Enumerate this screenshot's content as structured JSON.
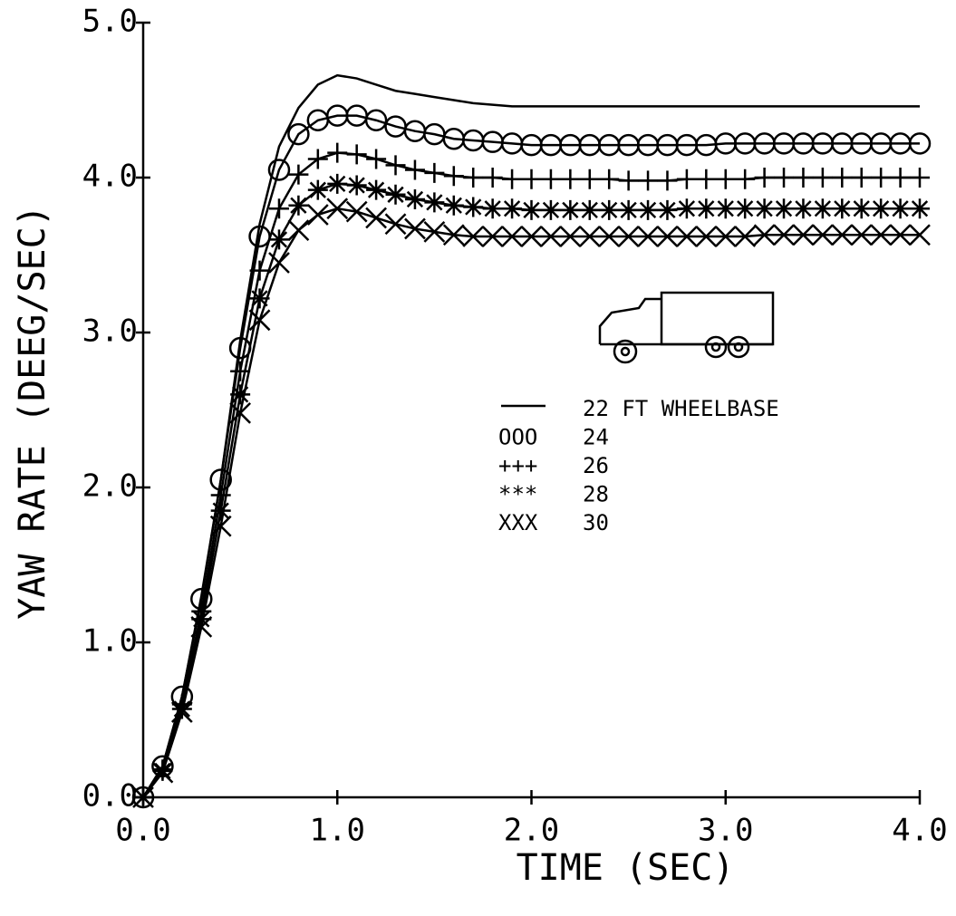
{
  "chart_data": {
    "type": "line",
    "xlabel": "TIME (SEC)",
    "ylabel": "YAW RATE (DEEG/SEC)",
    "x": [
      0,
      0.1,
      0.2,
      0.3,
      0.4,
      0.5,
      0.6,
      0.7,
      0.8,
      0.9,
      1.0,
      1.1,
      1.2,
      1.3,
      1.4,
      1.5,
      1.6,
      1.7,
      1.8,
      1.9,
      2.0,
      2.1,
      2.2,
      2.3,
      2.4,
      2.5,
      2.6,
      2.7,
      2.8,
      2.9,
      3.0,
      3.1,
      3.2,
      3.3,
      3.4,
      3.5,
      3.6,
      3.7,
      3.8,
      3.9,
      4.0
    ],
    "series": [
      {
        "name": "22 FT WHEELBASE",
        "color": "#000000",
        "marker": "none",
        "values": [
          0,
          0.2,
          0.65,
          1.3,
          2.05,
          2.95,
          3.7,
          4.2,
          4.45,
          4.6,
          4.66,
          4.64,
          4.6,
          4.56,
          4.54,
          4.52,
          4.5,
          4.48,
          4.47,
          4.46,
          4.46,
          4.46,
          4.46,
          4.46,
          4.46,
          4.46,
          4.46,
          4.46,
          4.46,
          4.46,
          4.46,
          4.46,
          4.46,
          4.46,
          4.46,
          4.46,
          4.46,
          4.46,
          4.46,
          4.46,
          4.46
        ]
      },
      {
        "name": "24",
        "legend_marker": "OOO",
        "color": "#000000",
        "marker": "o",
        "values": [
          0,
          0.2,
          0.65,
          1.28,
          2.05,
          2.9,
          3.62,
          4.05,
          4.28,
          4.37,
          4.4,
          4.4,
          4.37,
          4.33,
          4.3,
          4.28,
          4.25,
          4.24,
          4.23,
          4.22,
          4.21,
          4.21,
          4.21,
          4.21,
          4.21,
          4.21,
          4.21,
          4.21,
          4.21,
          4.21,
          4.22,
          4.22,
          4.22,
          4.22,
          4.22,
          4.22,
          4.22,
          4.22,
          4.22,
          4.22,
          4.22
        ]
      },
      {
        "name": "26",
        "legend_marker": "+++",
        "color": "#000000",
        "marker": "+",
        "values": [
          0,
          0.18,
          0.6,
          1.2,
          1.95,
          2.75,
          3.4,
          3.8,
          4.02,
          4.12,
          4.16,
          4.15,
          4.12,
          4.08,
          4.05,
          4.03,
          4.01,
          4.0,
          4.0,
          3.99,
          3.99,
          3.99,
          3.99,
          3.99,
          3.99,
          3.98,
          3.98,
          3.98,
          3.99,
          3.99,
          3.99,
          3.99,
          4.0,
          4.0,
          4.0,
          4.0,
          4.0,
          4.0,
          4.0,
          4.0,
          4.0
        ]
      },
      {
        "name": "28",
        "legend_marker": "***",
        "color": "#000000",
        "marker": "*",
        "values": [
          0,
          0.17,
          0.57,
          1.15,
          1.85,
          2.6,
          3.22,
          3.6,
          3.82,
          3.92,
          3.96,
          3.95,
          3.92,
          3.89,
          3.86,
          3.84,
          3.82,
          3.81,
          3.8,
          3.8,
          3.79,
          3.79,
          3.79,
          3.79,
          3.79,
          3.79,
          3.79,
          3.79,
          3.8,
          3.8,
          3.8,
          3.8,
          3.8,
          3.8,
          3.8,
          3.8,
          3.8,
          3.8,
          3.8,
          3.8,
          3.8
        ]
      },
      {
        "name": "30",
        "legend_marker": "XXX",
        "color": "#000000",
        "marker": "x",
        "values": [
          0,
          0.16,
          0.55,
          1.1,
          1.75,
          2.48,
          3.08,
          3.45,
          3.66,
          3.76,
          3.8,
          3.78,
          3.74,
          3.7,
          3.67,
          3.65,
          3.63,
          3.62,
          3.62,
          3.62,
          3.62,
          3.62,
          3.62,
          3.62,
          3.62,
          3.62,
          3.62,
          3.62,
          3.62,
          3.62,
          3.62,
          3.62,
          3.63,
          3.63,
          3.63,
          3.63,
          3.63,
          3.63,
          3.63,
          3.63,
          3.63
        ]
      }
    ],
    "xlim": [
      0,
      4
    ],
    "ylim": [
      0,
      5
    ],
    "xticks": [
      {
        "value": 0,
        "label": "0.0"
      },
      {
        "value": 1,
        "label": "1.0"
      },
      {
        "value": 2,
        "label": "2.0"
      },
      {
        "value": 3,
        "label": "3.0"
      },
      {
        "value": 4,
        "label": "4.0"
      }
    ],
    "yticks": [
      {
        "value": 0,
        "label": "0.0"
      },
      {
        "value": 1,
        "label": "1.0"
      },
      {
        "value": 2,
        "label": "2.0"
      },
      {
        "value": 3,
        "label": "3.0"
      },
      {
        "value": 4,
        "label": "4.0"
      },
      {
        "value": 5,
        "label": "5.0"
      }
    ],
    "grid": false
  }
}
